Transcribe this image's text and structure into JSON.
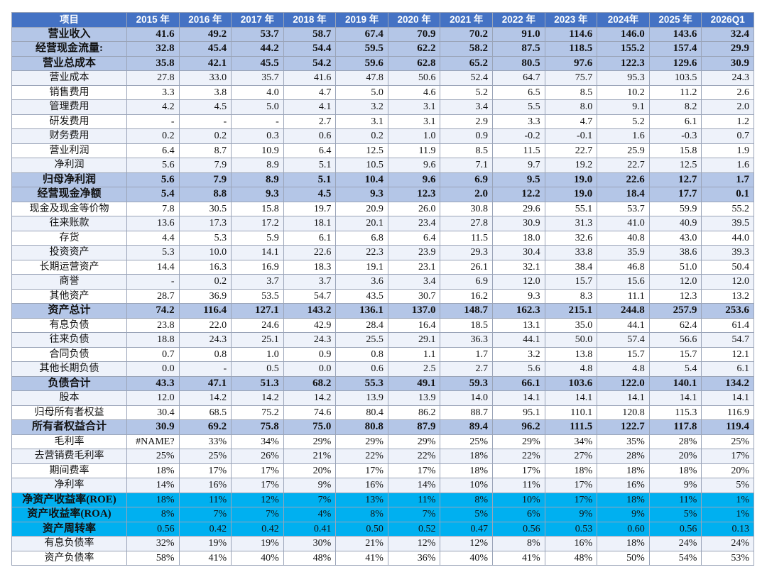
{
  "table": {
    "columns": [
      "项目",
      "2015 年",
      "2016 年",
      "2017 年",
      "2018 年",
      "2019 年",
      "2020 年",
      "2021 年",
      "2022 年",
      "2023 年",
      "2024年",
      "2025 年",
      "2026Q1"
    ],
    "rows": [
      {
        "label": "营业收入",
        "style": "strong",
        "cells": [
          "41.6",
          "49.2",
          "53.7",
          "58.7",
          "67.4",
          "70.9",
          "70.2",
          "91.0",
          "114.6",
          "146.0",
          "143.6",
          "32.4"
        ]
      },
      {
        "label": "经营现金流量:",
        "style": "strong",
        "cells": [
          "32.8",
          "45.4",
          "44.2",
          "54.4",
          "59.5",
          "62.2",
          "58.2",
          "87.5",
          "118.5",
          "155.2",
          "157.4",
          "29.9"
        ]
      },
      {
        "label": "营业总成本",
        "style": "strong",
        "cells": [
          "35.8",
          "42.1",
          "45.5",
          "54.2",
          "59.6",
          "62.8",
          "65.2",
          "80.5",
          "97.6",
          "122.3",
          "129.6",
          "30.9"
        ]
      },
      {
        "label": "营业成本",
        "cells": [
          "27.8",
          "33.0",
          "35.7",
          "41.6",
          "47.8",
          "50.6",
          "52.4",
          "64.7",
          "75.7",
          "95.3",
          "103.5",
          "24.3"
        ]
      },
      {
        "label": "销售费用",
        "cells": [
          "3.3",
          "3.8",
          "4.0",
          "4.7",
          "5.0",
          "4.6",
          "5.2",
          "6.5",
          "8.5",
          "10.2",
          "11.2",
          "2.6"
        ]
      },
      {
        "label": "管理费用",
        "cells": [
          "4.2",
          "4.5",
          "5.0",
          "4.1",
          "3.2",
          "3.1",
          "3.4",
          "5.5",
          "8.0",
          "9.1",
          "8.2",
          "2.0"
        ]
      },
      {
        "label": "研发费用",
        "cells": [
          "-",
          "-",
          "-",
          "2.7",
          "3.1",
          "3.1",
          "2.9",
          "3.3",
          "4.7",
          "5.2",
          "6.1",
          "1.2"
        ]
      },
      {
        "label": "财务费用",
        "cells": [
          "0.2",
          "0.2",
          "0.3",
          "0.6",
          "0.2",
          "1.0",
          "0.9",
          "-0.2",
          "-0.1",
          "1.6",
          "-0.3",
          "0.7"
        ]
      },
      {
        "label": "营业利润",
        "cells": [
          "6.4",
          "8.7",
          "10.9",
          "6.4",
          "12.5",
          "11.9",
          "8.5",
          "11.5",
          "22.7",
          "25.9",
          "15.8",
          "1.9"
        ]
      },
      {
        "label": "净利润",
        "cells": [
          "5.6",
          "7.9",
          "8.9",
          "5.1",
          "10.5",
          "9.6",
          "7.1",
          "9.7",
          "19.2",
          "22.7",
          "12.5",
          "1.6"
        ]
      },
      {
        "label": "归母净利润",
        "style": "strong",
        "cells": [
          "5.6",
          "7.9",
          "8.9",
          "5.1",
          "10.4",
          "9.6",
          "6.9",
          "9.5",
          "19.0",
          "22.6",
          "12.7",
          "1.7"
        ]
      },
      {
        "label": "经营现金净额",
        "style": "strong",
        "cells": [
          "5.4",
          "8.8",
          "9.3",
          "4.5",
          "9.3",
          "12.3",
          "2.0",
          "12.2",
          "19.0",
          "18.4",
          "17.7",
          "0.1"
        ]
      },
      {
        "label": "现金及现金等价物",
        "cells": [
          "7.8",
          "30.5",
          "15.8",
          "19.7",
          "20.9",
          "26.0",
          "30.8",
          "29.6",
          "55.1",
          "53.7",
          "59.9",
          "55.2"
        ]
      },
      {
        "label": "往来账款",
        "cells": [
          "13.6",
          "17.3",
          "17.2",
          "18.1",
          "20.1",
          "23.4",
          "27.8",
          "30.9",
          "31.3",
          "41.0",
          "40.9",
          "39.5"
        ]
      },
      {
        "label": "存货",
        "cells": [
          "4.4",
          "5.3",
          "5.9",
          "6.1",
          "6.8",
          "6.4",
          "11.5",
          "18.0",
          "32.6",
          "40.8",
          "43.0",
          "44.0"
        ]
      },
      {
        "label": "投资资产",
        "cells": [
          "5.3",
          "10.0",
          "14.1",
          "22.6",
          "22.3",
          "23.9",
          "29.3",
          "30.4",
          "33.8",
          "35.9",
          "38.6",
          "39.3"
        ]
      },
      {
        "label": "长期运营资产",
        "cells": [
          "14.4",
          "16.3",
          "16.9",
          "18.3",
          "19.1",
          "23.1",
          "26.1",
          "32.1",
          "38.4",
          "46.8",
          "51.0",
          "50.4"
        ]
      },
      {
        "label": "商誉",
        "cells": [
          "-",
          "0.2",
          "3.7",
          "3.7",
          "3.6",
          "3.4",
          "6.9",
          "12.0",
          "15.7",
          "15.6",
          "12.0",
          "12.0"
        ]
      },
      {
        "label": "其他资产",
        "cells": [
          "28.7",
          "36.9",
          "53.5",
          "54.7",
          "43.5",
          "30.7",
          "16.2",
          "9.3",
          "8.3",
          "11.1",
          "12.3",
          "13.2"
        ]
      },
      {
        "label": "资产总计",
        "style": "strong",
        "cells": [
          "74.2",
          "116.4",
          "127.1",
          "143.2",
          "136.1",
          "137.0",
          "148.7",
          "162.3",
          "215.1",
          "244.8",
          "257.9",
          "253.6"
        ]
      },
      {
        "label": "有息负债",
        "cells": [
          "23.8",
          "22.0",
          "24.6",
          "42.9",
          "28.4",
          "16.4",
          "18.5",
          "13.1",
          "35.0",
          "44.1",
          "62.4",
          "61.4"
        ]
      },
      {
        "label": "往来负债",
        "cells": [
          "18.8",
          "24.3",
          "25.1",
          "24.3",
          "25.5",
          "29.1",
          "36.3",
          "44.1",
          "50.0",
          "57.4",
          "56.6",
          "54.7"
        ]
      },
      {
        "label": "合同负债",
        "cells": [
          "0.7",
          "0.8",
          "1.0",
          "0.9",
          "0.8",
          "1.1",
          "1.7",
          "3.2",
          "13.8",
          "15.7",
          "15.7",
          "12.1"
        ]
      },
      {
        "label": "其他长期负债",
        "cells": [
          "0.0",
          "-",
          "0.5",
          "0.0",
          "0.6",
          "2.5",
          "2.7",
          "5.6",
          "4.8",
          "4.8",
          "5.4",
          "6.1"
        ]
      },
      {
        "label": "负债合计",
        "style": "strong",
        "cells": [
          "43.3",
          "47.1",
          "51.3",
          "68.2",
          "55.3",
          "49.1",
          "59.3",
          "66.1",
          "103.6",
          "122.0",
          "140.1",
          "134.2"
        ]
      },
      {
        "label": "股本",
        "cells": [
          "12.0",
          "14.2",
          "14.2",
          "14.2",
          "13.9",
          "13.9",
          "14.0",
          "14.1",
          "14.1",
          "14.1",
          "14.1",
          "14.1"
        ]
      },
      {
        "label": "归母所有者权益",
        "cells": [
          "30.4",
          "68.5",
          "75.2",
          "74.6",
          "80.4",
          "86.2",
          "88.7",
          "95.1",
          "110.1",
          "120.8",
          "115.3",
          "116.9"
        ]
      },
      {
        "label": "所有者权益合计",
        "style": "strong",
        "cells": [
          "30.9",
          "69.2",
          "75.8",
          "75.0",
          "80.8",
          "87.9",
          "89.4",
          "96.2",
          "111.5",
          "122.7",
          "117.8",
          "119.4"
        ]
      },
      {
        "label": "毛利率",
        "cells": [
          "#NAME?",
          "33%",
          "34%",
          "29%",
          "29%",
          "29%",
          "25%",
          "29%",
          "34%",
          "35%",
          "28%",
          "25%"
        ]
      },
      {
        "label": "去营销费毛利率",
        "cells": [
          "25%",
          "25%",
          "26%",
          "21%",
          "22%",
          "22%",
          "18%",
          "22%",
          "27%",
          "28%",
          "20%",
          "17%"
        ]
      },
      {
        "label": "期间费率",
        "cells": [
          "18%",
          "17%",
          "17%",
          "20%",
          "17%",
          "17%",
          "18%",
          "17%",
          "18%",
          "18%",
          "18%",
          "20%"
        ]
      },
      {
        "label": "净利率",
        "cells": [
          "14%",
          "16%",
          "17%",
          "9%",
          "16%",
          "14%",
          "10%",
          "11%",
          "17%",
          "16%",
          "9%",
          "5%"
        ]
      },
      {
        "label": "净资产收益率(ROE)",
        "style": "cyan",
        "cells": [
          "18%",
          "11%",
          "12%",
          "7%",
          "13%",
          "11%",
          "8%",
          "10%",
          "17%",
          "18%",
          "11%",
          "1%"
        ]
      },
      {
        "label": "资产收益率(ROA)",
        "style": "cyan",
        "cells": [
          "8%",
          "7%",
          "7%",
          "4%",
          "8%",
          "7%",
          "5%",
          "6%",
          "9%",
          "9%",
          "5%",
          "1%"
        ]
      },
      {
        "label": "资产周转率",
        "style": "cyan",
        "cells": [
          "0.56",
          "0.42",
          "0.42",
          "0.41",
          "0.50",
          "0.52",
          "0.47",
          "0.56",
          "0.53",
          "0.60",
          "0.56",
          "0.13"
        ]
      },
      {
        "label": "有息负债率",
        "cells": [
          "32%",
          "19%",
          "19%",
          "30%",
          "21%",
          "12%",
          "12%",
          "8%",
          "16%",
          "18%",
          "24%",
          "24%"
        ]
      },
      {
        "label": "资产负债率",
        "cells": [
          "58%",
          "41%",
          "40%",
          "48%",
          "41%",
          "36%",
          "40%",
          "41%",
          "48%",
          "50%",
          "54%",
          "53%"
        ]
      }
    ]
  }
}
